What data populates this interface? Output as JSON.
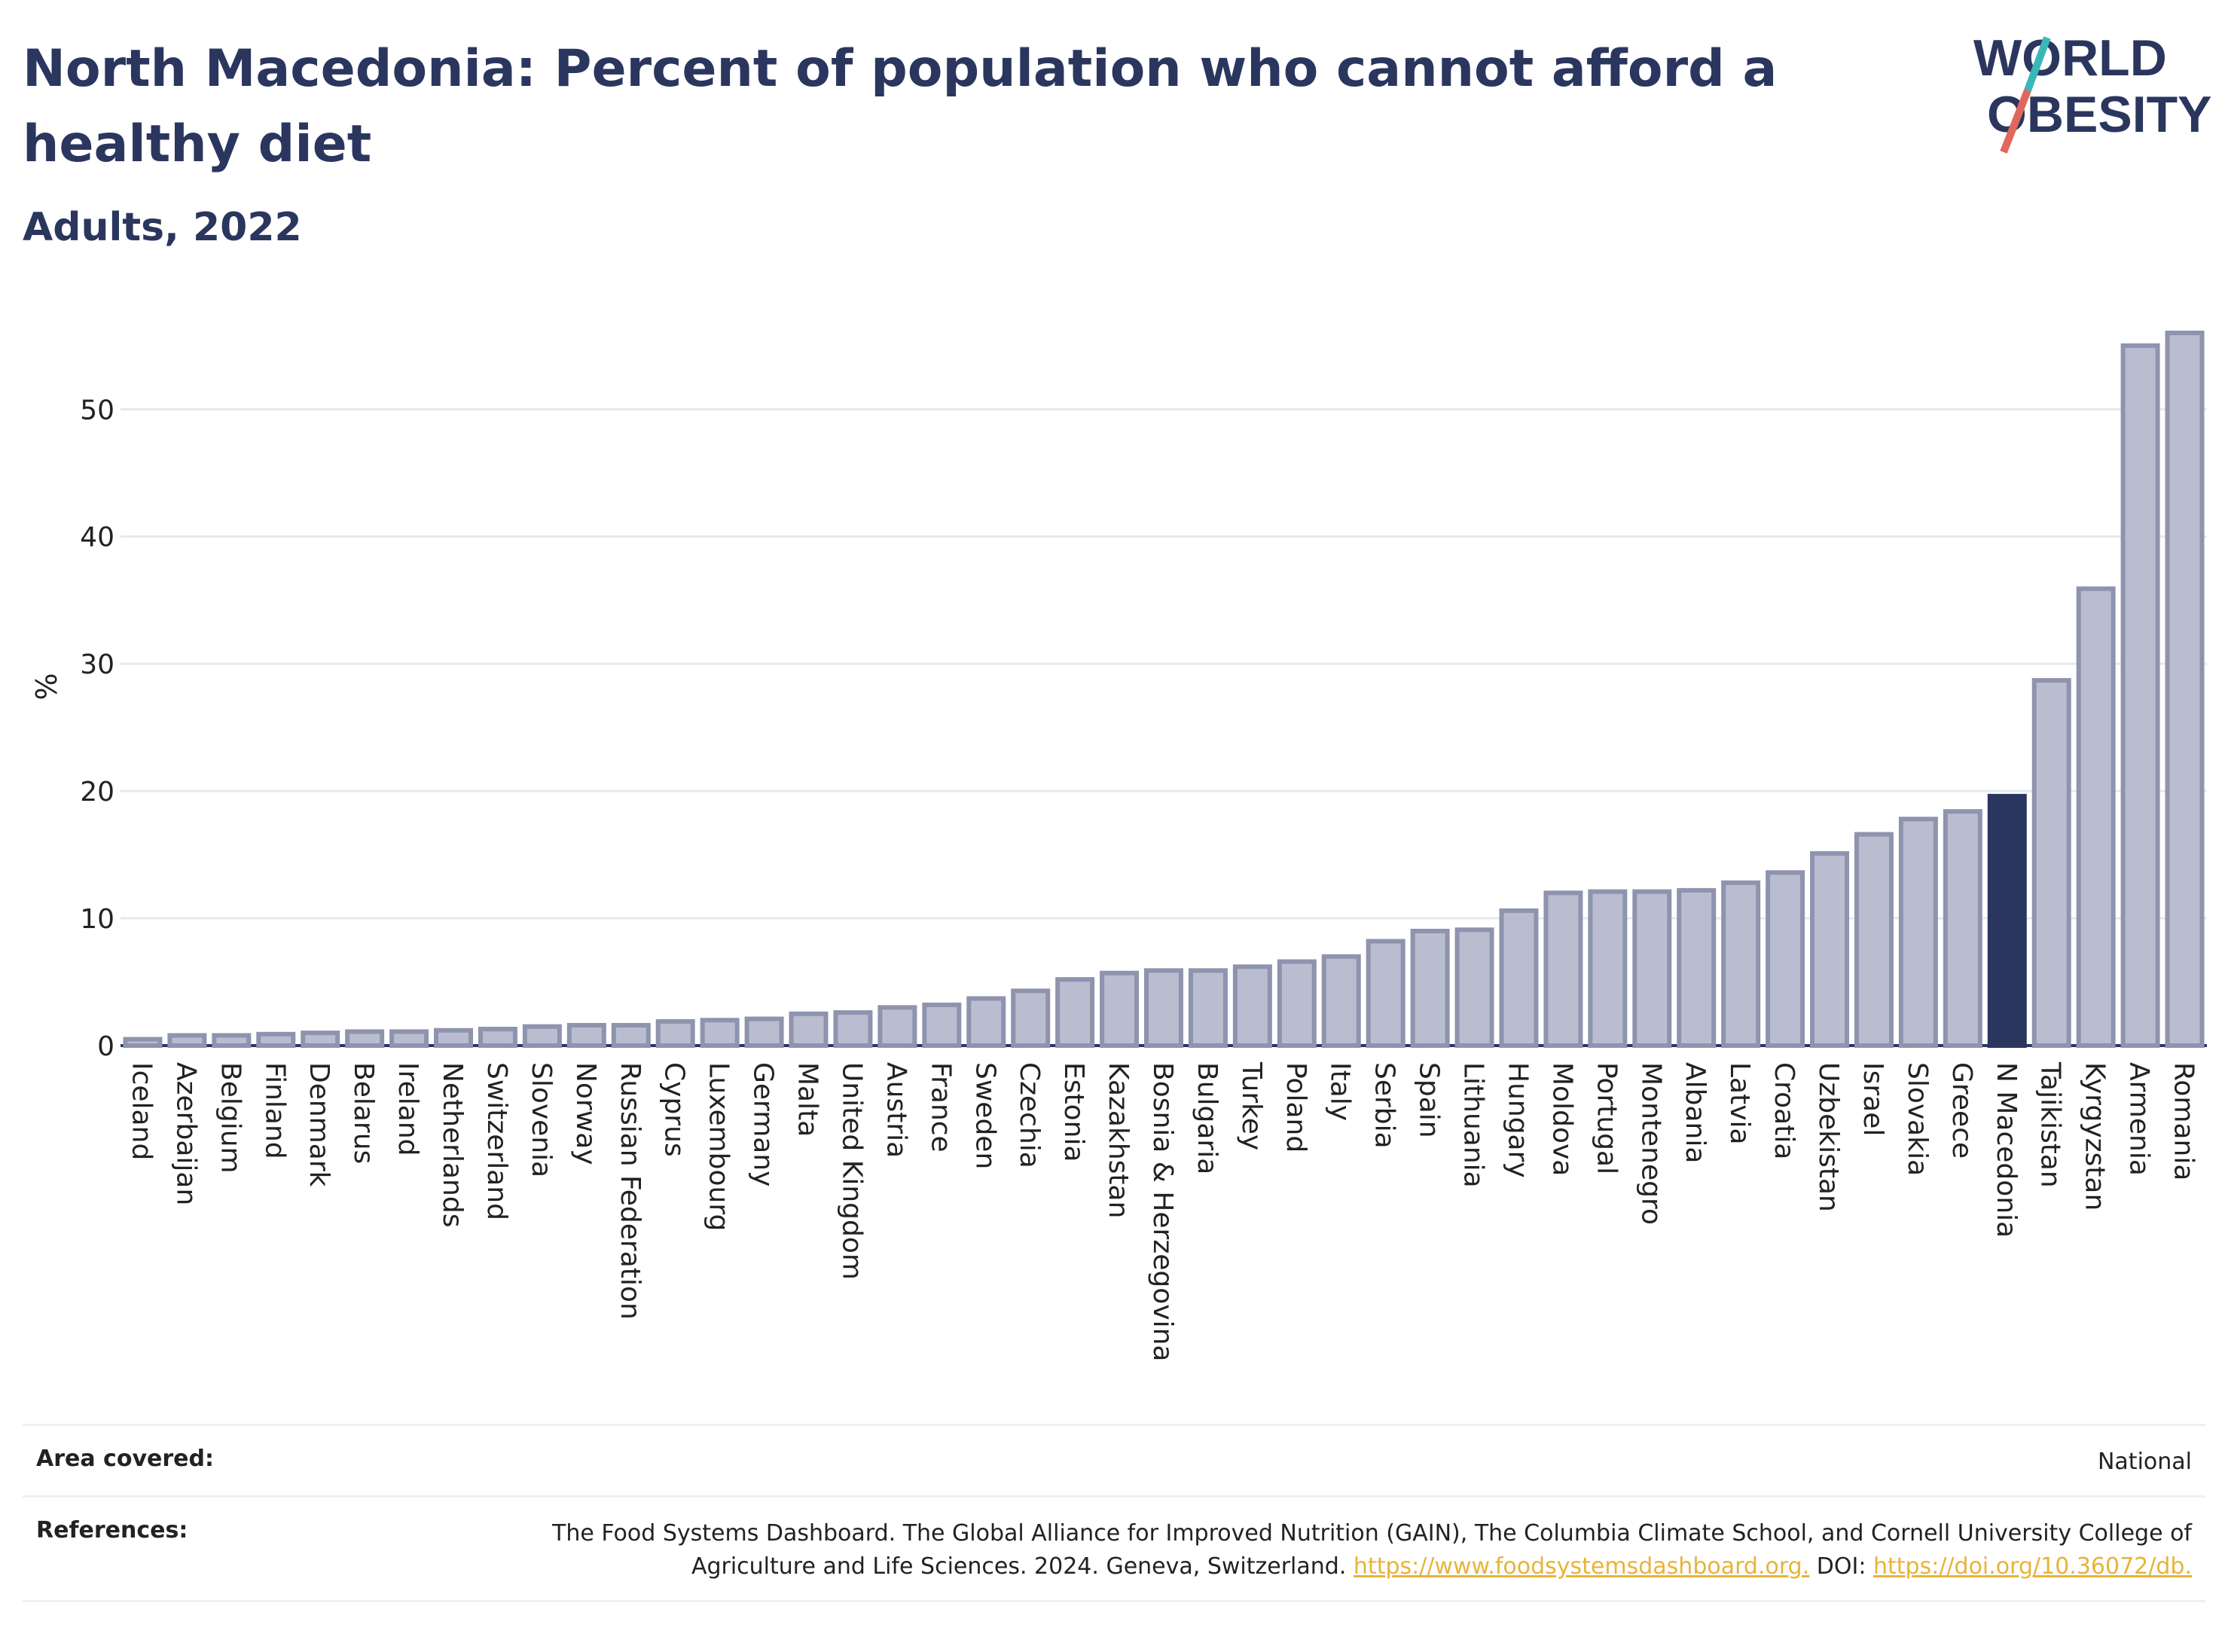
{
  "header": {
    "title": "North Macedonia: Percent of population who cannot afford a healthy diet",
    "subtitle": "Adults, 2022",
    "logo_text_line1": "WORLD",
    "logo_text_line2": "OBESITY"
  },
  "chart_data": {
    "type": "bar",
    "ylabel": "%",
    "ylim": [
      0,
      57
    ],
    "yticks": [
      0,
      10,
      20,
      30,
      40,
      50
    ],
    "grid": true,
    "highlight": "N Macedonia",
    "colors": {
      "bar": "#b9bdcf",
      "bar_border": "#8e93ae",
      "highlight": "#2b365f",
      "grid": "#e6e8ef",
      "axis": "#2b365f"
    },
    "categories": [
      "Iceland",
      "Azerbaijan",
      "Belgium",
      "Finland",
      "Denmark",
      "Belarus",
      "Ireland",
      "Netherlands",
      "Switzerland",
      "Slovenia",
      "Norway",
      "Russian Federation",
      "Cyprus",
      "Luxembourg",
      "Germany",
      "Malta",
      "United Kingdom",
      "Austria",
      "France",
      "Sweden",
      "Czechia",
      "Estonia",
      "Kazakhstan",
      "Bosnia & Herzegovina",
      "Bulgaria",
      "Turkey",
      "Poland",
      "Italy",
      "Serbia",
      "Spain",
      "Lithuania",
      "Hungary",
      "Moldova",
      "Portugal",
      "Montenegro",
      "Albania",
      "Latvia",
      "Croatia",
      "Uzbekistan",
      "Israel",
      "Slovakia",
      "Greece",
      "N Macedonia",
      "Tajikistan",
      "Kyrgyzstan",
      "Armenia",
      "Romania"
    ],
    "values": [
      0.5,
      0.8,
      0.8,
      0.9,
      1.0,
      1.1,
      1.1,
      1.2,
      1.3,
      1.5,
      1.6,
      1.6,
      1.9,
      2.0,
      2.1,
      2.5,
      2.6,
      3.0,
      3.2,
      3.7,
      4.3,
      5.2,
      5.7,
      5.9,
      5.9,
      6.2,
      6.6,
      7.0,
      8.2,
      9.0,
      9.1,
      10.6,
      12.0,
      12.1,
      12.1,
      12.2,
      12.8,
      13.6,
      15.1,
      16.6,
      17.8,
      18.4,
      19.6,
      28.7,
      35.9,
      55.0,
      56.0
    ]
  },
  "footer": {
    "area_label": "Area covered:",
    "area_value": "National",
    "references_label": "References:",
    "references_text": "The Food Systems Dashboard. The Global Alliance for Improved Nutrition (GAIN), The Columbia Climate School, and Cornell University College of Agriculture and Life Sciences. 2024. Geneva, Switzerland.",
    "references_link1": "https://www.foodsystemsdashboard.org.",
    "references_doi_label": "DOI:",
    "references_link2": "https://doi.org/10.36072/db."
  }
}
